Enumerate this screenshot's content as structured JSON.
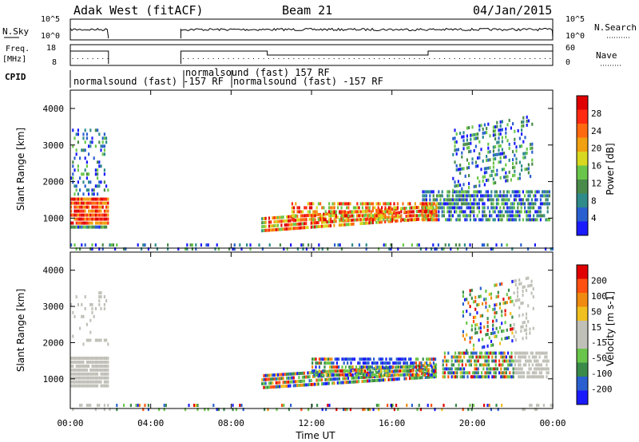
{
  "header": {
    "radar": "Adak West (fitACF)",
    "beam": "Beam 21",
    "date": "04/Jan/2015"
  },
  "noise_panel": {
    "left_label": "N.Sky",
    "right_label": "N.Search",
    "left_ticks": [
      "10^5",
      "10^0"
    ],
    "right_ticks": [
      "10^5",
      "10^0"
    ]
  },
  "freq_panel": {
    "left_label_1": "Freq.",
    "left_label_2": "[MHz]",
    "right_label": "Nave",
    "left_ticks": [
      "18",
      "8"
    ],
    "right_ticks": [
      "60",
      "0"
    ]
  },
  "cpid_panel": {
    "label": "CPID",
    "entries": [
      {
        "text": "normalsound (fast) -157 RF",
        "start": "00:00"
      },
      {
        "text": "normalsound (fast) 157 RF",
        "start": "05:30"
      },
      {
        "text": "normalsound (fast) -157 RF",
        "start": "08:00"
      }
    ]
  },
  "chart_data": [
    {
      "type": "heatmap",
      "title": "Power",
      "xlabel": "",
      "ylabel": "Slant Range [km]",
      "xlim": [
        "00:00",
        "24:00"
      ],
      "ylim": [
        180,
        4500
      ],
      "y_ticks": [
        1000,
        2000,
        3000,
        4000
      ],
      "colorbar": {
        "label": "Power [dB]",
        "ticks": [
          "4",
          "8",
          "12",
          "16",
          "20",
          "24",
          "28"
        ],
        "colors": [
          "#1a1aff",
          "#2a5fcf",
          "#2f8a8a",
          "#4a8a4a",
          "#6ac64a",
          "#d8d820",
          "#f0a010",
          "#ff6a10",
          "#ff2a10",
          "#e00000"
        ]
      },
      "regions": [
        {
          "x": [
            0.0,
            1.9
          ],
          "y": [
            800,
            1650
          ],
          "level": "high (20-28 dB)"
        },
        {
          "x": [
            0.0,
            1.9
          ],
          "y": [
            1700,
            3500
          ],
          "level": "low (4-12 dB)"
        },
        {
          "x": [
            9.5,
            18.2
          ],
          "y": [
            700,
            1650
          ],
          "level": "high (16-28 dB)"
        },
        {
          "x": [
            17.5,
            23.8
          ],
          "y": [
            1000,
            3500
          ],
          "level": "mid (8-20 dB)"
        }
      ]
    },
    {
      "type": "heatmap",
      "title": "Velocity",
      "xlabel": "Time UT",
      "ylabel": "Slant Range [km]",
      "xlim": [
        "00:00",
        "24:00"
      ],
      "ylim": [
        180,
        4500
      ],
      "y_ticks": [
        1000,
        2000,
        3000,
        4000
      ],
      "x_ticks": [
        "00:00",
        "04:00",
        "08:00",
        "12:00",
        "16:00",
        "20:00",
        "00:00"
      ],
      "colorbar": {
        "label": "Velocity [m s-1]",
        "ticks": [
          "200",
          "100",
          "50",
          "15",
          "-15",
          "-50",
          "-100",
          "-200"
        ],
        "colors": [
          "#1a1aff",
          "#2a5fcf",
          "#3a8a4a",
          "#6ac64a",
          "#c0c0b8",
          "#c0c0b8",
          "#f0c020",
          "#f08a10",
          "#ff5010",
          "#e00000"
        ]
      },
      "regions": [
        {
          "x": [
            0.0,
            1.9
          ],
          "y": [
            850,
            1650
          ],
          "level": "ground scatter (-15 to 15)"
        },
        {
          "x": [
            9.5,
            18.2
          ],
          "y": [
            800,
            1650
          ],
          "level": "mixed (-200 to 200)"
        },
        {
          "x": [
            18.5,
            23.8
          ],
          "y": [
            1100,
            3500
          ],
          "level": "mixed (-200 to 200)"
        }
      ]
    }
  ],
  "time_axis": {
    "ticks": [
      "00:00",
      "04:00",
      "08:00",
      "12:00",
      "16:00",
      "20:00",
      "00:00"
    ],
    "label": "Time UT"
  }
}
